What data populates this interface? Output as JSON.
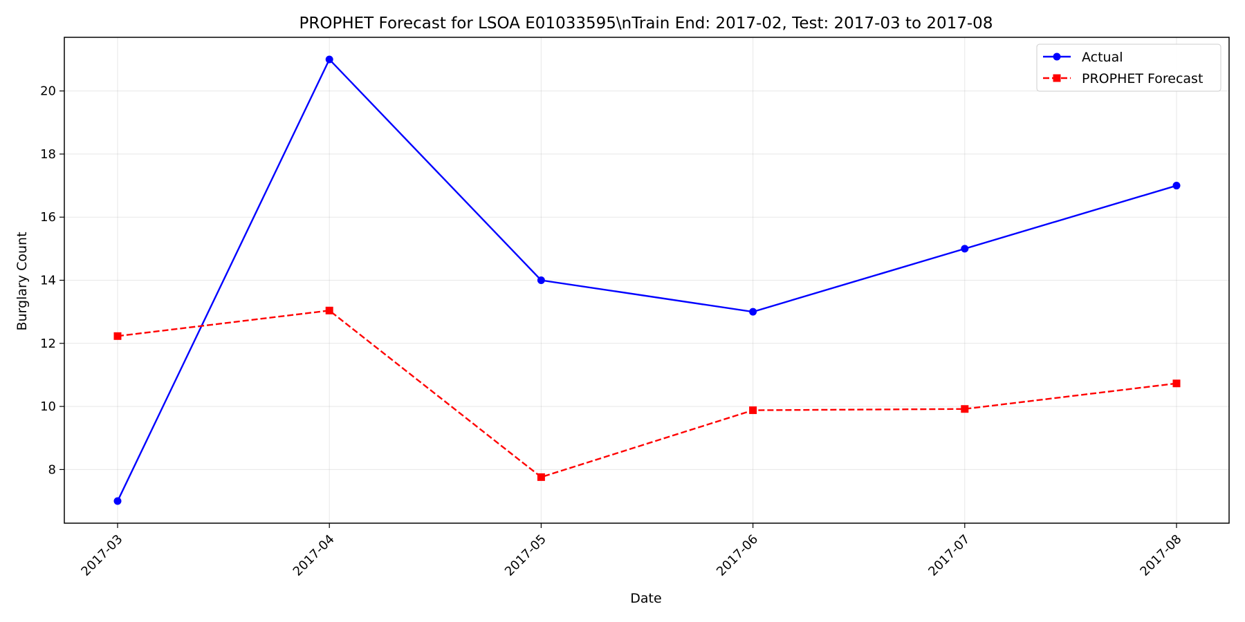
{
  "chart_data": {
    "type": "line",
    "title": "PROPHET Forecast for LSOA E01033595\\nTrain End: 2017-02, Test: 2017-03 to 2017-08",
    "xlabel": "Date",
    "ylabel": "Burglary Count",
    "categories": [
      "2017-03",
      "2017-04",
      "2017-05",
      "2017-06",
      "2017-07",
      "2017-08"
    ],
    "ylim": [
      6.3,
      21.7
    ],
    "yticks": [
      8,
      10,
      12,
      14,
      16,
      18,
      20
    ],
    "grid": true,
    "legend_position": "top-right",
    "series": [
      {
        "name": "Actual",
        "values": [
          7,
          21,
          14,
          13,
          15,
          17
        ],
        "color": "#0000ff",
        "linestyle": "solid",
        "marker": "circle"
      },
      {
        "name": "PROPHET Forecast",
        "values": [
          12.23,
          13.04,
          7.76,
          9.88,
          9.92,
          10.73
        ],
        "color": "#ff0000",
        "linestyle": "dashed",
        "marker": "square"
      }
    ]
  }
}
